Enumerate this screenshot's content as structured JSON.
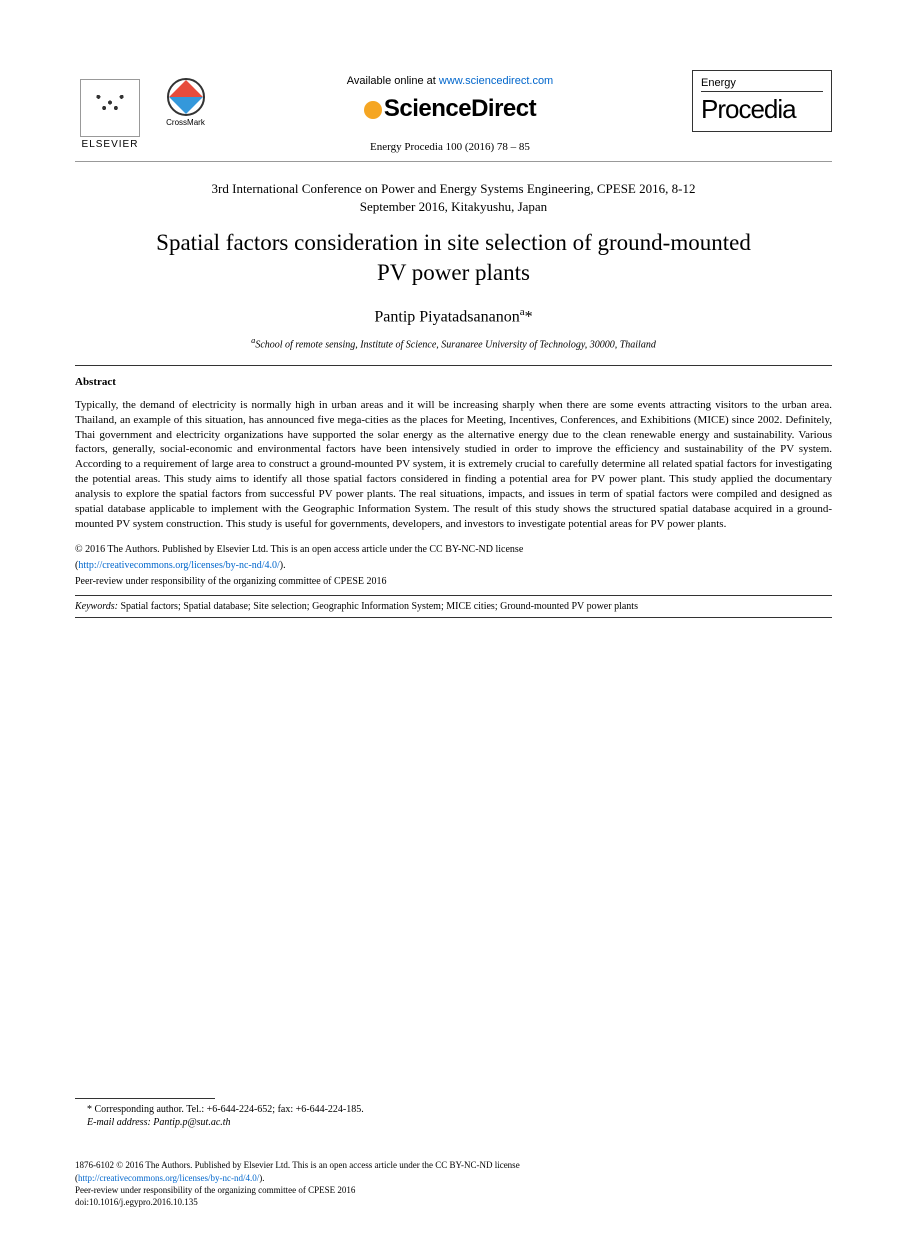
{
  "header": {
    "elsevier_label": "ELSEVIER",
    "crossmark_label": "CrossMark",
    "available_prefix": "Available online at ",
    "available_url": "www.sciencedirect.com",
    "sciencedirect_label": "ScienceDirect",
    "citation": "Energy Procedia 100 (2016) 78 – 85",
    "procedia_small": "Energy",
    "procedia_big": "Procedia"
  },
  "conference": {
    "line1": "3rd International Conference on Power and Energy Systems Engineering, CPESE 2016, 8-12",
    "line2": "September 2016, Kitakyushu, Japan"
  },
  "title": {
    "line1": "Spatial factors consideration in site selection of ground-mounted",
    "line2": "PV power plants"
  },
  "author": {
    "name": "Pantip Piyatadsananon",
    "sup": "a",
    "asterisk": "*"
  },
  "affiliation": {
    "text": "School of remote sensing, Institute of Science, Suranaree University of Technology, 30000, Thailand",
    "sup": "a"
  },
  "abstract": {
    "heading": "Abstract",
    "text": "Typically, the demand of electricity is normally high in urban areas and it will be increasing sharply when there are some events attracting visitors to the urban area. Thailand, an example of this situation, has announced five mega-cities as the places for Meeting, Incentives, Conferences, and Exhibitions (MICE) since 2002. Definitely, Thai government and electricity organizations have supported the solar energy as the alternative energy due to the clean renewable energy and sustainability. Various factors, generally, social-economic and environmental factors have been intensively studied in order to improve the efficiency and sustainability of the PV system. According to a requirement of large area to construct a ground-mounted PV system, it is extremely crucial to carefully determine all related spatial factors for investigating the potential areas. This study aims to identify all those spatial factors considered in finding a potential area for PV power plant. This study applied the documentary analysis to explore the spatial factors from successful PV power plants. The real situations, impacts, and issues in term of spatial factors were compiled and designed as spatial database applicable to implement with the Geographic Information System. The result of this study shows the structured spatial database acquired in a ground-mounted PV system construction. This study is useful for governments, developers, and investors to investigate potential areas for PV power plants."
  },
  "copyright": {
    "line1": "© 2016 The Authors. Published by Elsevier Ltd. This is an open access article under the CC BY-NC-ND license",
    "license_url": "http://creativecommons.org/licenses/by-nc-nd/4.0/",
    "peer_review": "Peer-review under responsibility of the organizing committee of CPESE 2016"
  },
  "keywords": {
    "label": "Keywords:",
    "text": " Spatial factors; Spatial database; Site selection; Geographic Information System; MICE cities; Ground-mounted PV power plants"
  },
  "footnote": {
    "corresponding": "* Corresponding author. Tel.: +6-644-224-652; fax: +6-644-224-185.",
    "email_label": "E-mail address:",
    "email": " Pantip.p@sut.ac.th"
  },
  "footer": {
    "line1": "1876-6102 © 2016 The Authors. Published by Elsevier Ltd. This is an open access article under the CC BY-NC-ND license",
    "license_url": "http://creativecommons.org/licenses/by-nc-nd/4.0/",
    "line3": "Peer-review under responsibility of the organizing committee of CPESE 2016",
    "doi": "doi:10.1016/j.egypro.2016.10.135"
  },
  "colors": {
    "text": "#000000",
    "link": "#0066cc",
    "background": "#ffffff",
    "border": "#333333"
  },
  "typography": {
    "title_fontsize": 23,
    "conference_fontsize": 13,
    "author_fontsize": 16,
    "abstract_fontsize": 11,
    "copyright_fontsize": 10,
    "footer_fontsize": 9
  }
}
